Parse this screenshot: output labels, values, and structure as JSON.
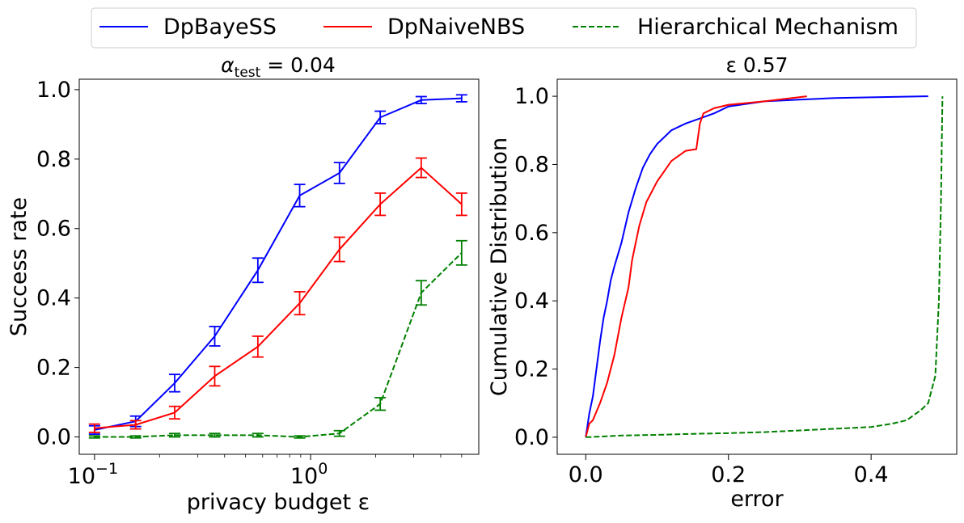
{
  "legend": {
    "placement": "top-center",
    "entries": [
      {
        "label": "DpBayeSS",
        "color": "#0000ff",
        "dash": "solid"
      },
      {
        "label": "DpNaiveNBS",
        "color": "#ff0000",
        "dash": "solid"
      },
      {
        "label": "Hierarchical Mechanism",
        "color": "#008000",
        "dash": "dashed"
      }
    ]
  },
  "chart_data": [
    {
      "type": "line",
      "title": "α_test = 0.04",
      "title_parts": {
        "alpha": "α",
        "sub": "test",
        "rest": " = 0.04"
      },
      "xlabel": "privacy budget ε",
      "ylabel": "Success rate",
      "xscale": "log",
      "xlim": [
        0.085,
        6.0
      ],
      "ylim": [
        -0.05,
        1.03
      ],
      "xticks": [
        {
          "value": 0.1,
          "base": "10",
          "exp": "−1"
        },
        {
          "value": 1,
          "base": "10",
          "exp": "0"
        }
      ],
      "yticks": [
        "0.0",
        "0.2",
        "0.4",
        "0.6",
        "0.8",
        "1.0"
      ],
      "grid": false,
      "x": [
        0.1,
        0.155,
        0.235,
        0.36,
        0.57,
        0.89,
        1.36,
        2.1,
        3.25,
        5.0
      ],
      "series": [
        {
          "name": "DpBayeSS",
          "color": "#0000ff",
          "dash": "solid",
          "values": [
            0.02,
            0.045,
            0.155,
            0.29,
            0.48,
            0.695,
            0.76,
            0.92,
            0.97,
            0.975
          ],
          "errors": [
            0.012,
            0.015,
            0.025,
            0.028,
            0.035,
            0.032,
            0.03,
            0.018,
            0.01,
            0.01
          ]
        },
        {
          "name": "DpNaiveNBS",
          "color": "#ff0000",
          "dash": "solid",
          "values": [
            0.025,
            0.035,
            0.07,
            0.175,
            0.26,
            0.385,
            0.54,
            0.67,
            0.775,
            0.67
          ],
          "errors": [
            0.012,
            0.012,
            0.018,
            0.028,
            0.03,
            0.033,
            0.035,
            0.032,
            0.028,
            0.032
          ]
        },
        {
          "name": "Hierarchical Mechanism",
          "color": "#008000",
          "dash": "dashed",
          "values": [
            0.0,
            0.0,
            0.005,
            0.005,
            0.005,
            0.0,
            0.01,
            0.095,
            0.415,
            0.53
          ],
          "errors": [
            0.003,
            0.003,
            0.005,
            0.005,
            0.005,
            0.003,
            0.008,
            0.018,
            0.035,
            0.035
          ]
        }
      ]
    },
    {
      "type": "line",
      "title": "ε 0.57",
      "xlabel": "error",
      "ylabel": "Cumulative Distribution",
      "xlim": [
        -0.04,
        0.52
      ],
      "ylim": [
        -0.05,
        1.05
      ],
      "xticks": [
        "0.0",
        "0.2",
        "0.4"
      ],
      "yticks": [
        "0.0",
        "0.2",
        "0.4",
        "0.6",
        "0.8",
        "1.0"
      ],
      "grid": false,
      "series": [
        {
          "name": "DpBayeSS",
          "color": "#0000ff",
          "dash": "solid",
          "x": [
            0.0,
            0.005,
            0.01,
            0.015,
            0.02,
            0.025,
            0.03,
            0.035,
            0.04,
            0.05,
            0.06,
            0.07,
            0.08,
            0.09,
            0.1,
            0.12,
            0.14,
            0.16,
            0.18,
            0.2,
            0.25,
            0.3,
            0.35,
            0.4,
            0.48
          ],
          "values": [
            0.0,
            0.07,
            0.12,
            0.2,
            0.28,
            0.35,
            0.4,
            0.46,
            0.5,
            0.57,
            0.66,
            0.73,
            0.79,
            0.83,
            0.86,
            0.9,
            0.92,
            0.935,
            0.95,
            0.97,
            0.985,
            0.99,
            0.995,
            0.997,
            1.0
          ]
        },
        {
          "name": "DpNaiveNBS",
          "color": "#ff0000",
          "dash": "solid",
          "x": [
            0.0,
            0.005,
            0.01,
            0.02,
            0.03,
            0.04,
            0.05,
            0.06,
            0.065,
            0.075,
            0.085,
            0.1,
            0.11,
            0.12,
            0.14,
            0.155,
            0.16,
            0.165,
            0.18,
            0.2,
            0.25,
            0.31
          ],
          "values": [
            0.0,
            0.04,
            0.05,
            0.1,
            0.16,
            0.24,
            0.35,
            0.44,
            0.52,
            0.62,
            0.69,
            0.75,
            0.78,
            0.81,
            0.84,
            0.845,
            0.92,
            0.95,
            0.965,
            0.975,
            0.985,
            1.0
          ]
        },
        {
          "name": "Hierarchical Mechanism",
          "color": "#008000",
          "dash": "dashed",
          "x": [
            0.0,
            0.05,
            0.1,
            0.15,
            0.2,
            0.25,
            0.3,
            0.35,
            0.4,
            0.43,
            0.45,
            0.47,
            0.48,
            0.49,
            0.495,
            0.498,
            0.5
          ],
          "values": [
            0.0,
            0.005,
            0.007,
            0.01,
            0.012,
            0.015,
            0.02,
            0.025,
            0.03,
            0.04,
            0.05,
            0.08,
            0.1,
            0.18,
            0.4,
            0.7,
            1.0
          ]
        }
      ]
    }
  ]
}
